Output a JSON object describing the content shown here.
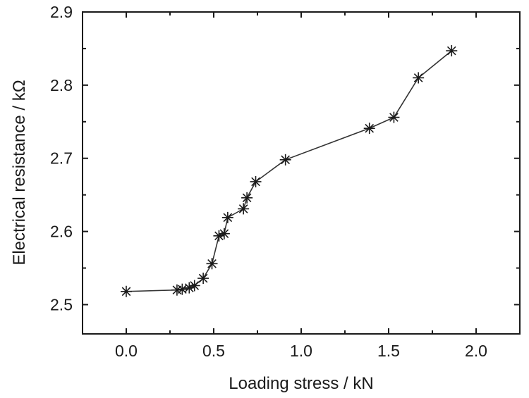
{
  "chart_data": {
    "type": "line",
    "title": "",
    "xlabel": "Loading stress / kN",
    "ylabel": "Electrical resistance / kΩ",
    "xlim": [
      -0.25,
      2.25
    ],
    "ylim": [
      2.46,
      2.9
    ],
    "x_ticks": [
      0.0,
      0.5,
      1.0,
      1.5,
      2.0
    ],
    "x_tick_labels": [
      "0.0",
      "0.5",
      "1.0",
      "1.5",
      "2.0"
    ],
    "y_ticks": [
      2.5,
      2.6,
      2.7,
      2.8,
      2.9
    ],
    "y_tick_labels": [
      "2.5",
      "2.6",
      "2.7",
      "2.8",
      "2.9"
    ],
    "marker": "asterisk",
    "grid": false,
    "legend": "none",
    "series": [
      {
        "color": "#333333",
        "points": [
          {
            "x": 0.0,
            "y": 2.518
          },
          {
            "x": 0.29,
            "y": 2.52
          },
          {
            "x": 0.32,
            "y": 2.521
          },
          {
            "x": 0.36,
            "y": 2.523
          },
          {
            "x": 0.39,
            "y": 2.526
          },
          {
            "x": 0.44,
            "y": 2.536
          },
          {
            "x": 0.49,
            "y": 2.556
          },
          {
            "x": 0.53,
            "y": 2.594
          },
          {
            "x": 0.56,
            "y": 2.597
          },
          {
            "x": 0.58,
            "y": 2.619
          },
          {
            "x": 0.67,
            "y": 2.631
          },
          {
            "x": 0.69,
            "y": 2.646
          },
          {
            "x": 0.74,
            "y": 2.668
          },
          {
            "x": 0.91,
            "y": 2.698
          },
          {
            "x": 1.39,
            "y": 2.741
          },
          {
            "x": 1.53,
            "y": 2.756
          },
          {
            "x": 1.67,
            "y": 2.81
          },
          {
            "x": 1.86,
            "y": 2.847
          }
        ]
      }
    ]
  }
}
